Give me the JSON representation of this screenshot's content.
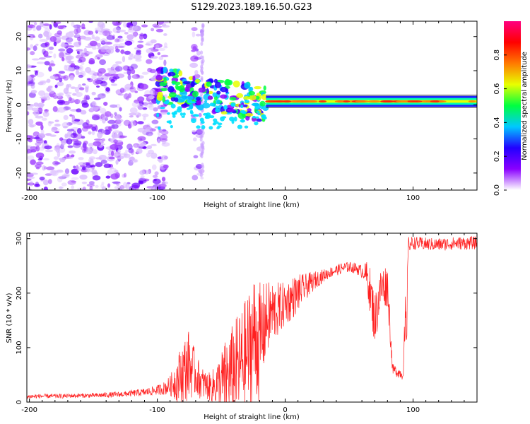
{
  "title": "S129.2023.189.16.50.G23",
  "chart_data": [
    {
      "type": "heatmap",
      "name": "spectrogram",
      "xlabel": "Height of straight line (km)",
      "ylabel": "Frequency (Hz)",
      "xlim": [
        -202,
        150
      ],
      "ylim": [
        -25,
        24.5
      ],
      "xticks": [
        -200,
        -100,
        0,
        100
      ],
      "xtick_labels": [
        "-200",
        "-100",
        "0",
        "100"
      ],
      "yticks": [
        -20,
        -10,
        0,
        10,
        20
      ],
      "ytick_labels": [
        "-20",
        "-10",
        "0",
        "10",
        "20"
      ],
      "colorbar": {
        "label": "Normalized spectral amplitude",
        "range": [
          0,
          1
        ],
        "ticks": [
          0.0,
          0.2,
          0.4,
          0.6,
          0.8
        ],
        "tick_labels": [
          "0.0",
          "0.2",
          "0.4",
          "0.6",
          "0.8"
        ],
        "colormap": [
          "#ffffff",
          "#8a00ff",
          "#2200ff",
          "#00c8ff",
          "#00ff40",
          "#e8ff00",
          "#ff7a00",
          "#ff0000",
          "#ff0080"
        ]
      },
      "features": {
        "noise_region_km": [
          -202,
          -65
        ],
        "dispersed_region_km": [
          -100,
          -15
        ],
        "carrier_line_km": [
          -15,
          150
        ],
        "carrier_frequency_hz": 1
      }
    },
    {
      "type": "line",
      "name": "snr",
      "xlabel": "Height of straight line (km)",
      "ylabel": "SNR (10 * v/v)",
      "xlim": [
        -202,
        150
      ],
      "ylim": [
        0,
        310
      ],
      "xticks": [
        -200,
        -100,
        0,
        100
      ],
      "xtick_labels": [
        "-200",
        "-100",
        "0",
        "100"
      ],
      "yticks": [
        0,
        100,
        200,
        300
      ],
      "ytick_labels": [
        "0",
        "100",
        "200",
        "300"
      ],
      "color": "#ff2020",
      "series": [
        {
          "name": "SNR",
          "x": [
            -202,
            -190,
            -175,
            -160,
            -150,
            -140,
            -130,
            -120,
            -110,
            -100,
            -95,
            -90,
            -85,
            -80,
            -75,
            -70,
            -65,
            -60,
            -55,
            -50,
            -45,
            -40,
            -35,
            -30,
            -25,
            -20,
            -15,
            -10,
            -5,
            0,
            5,
            10,
            15,
            20,
            25,
            30,
            35,
            40,
            45,
            50,
            55,
            60,
            62,
            65,
            70,
            75,
            80,
            82,
            84,
            86,
            88,
            90,
            92,
            94,
            95,
            96,
            97,
            100,
            110,
            120,
            130,
            140,
            150
          ],
          "y": [
            10,
            11,
            11,
            12,
            12,
            13,
            14,
            16,
            18,
            22,
            25,
            30,
            40,
            55,
            70,
            50,
            35,
            28,
            30,
            35,
            45,
            60,
            70,
            85,
            120,
            110,
            150,
            165,
            170,
            180,
            190,
            200,
            210,
            218,
            226,
            232,
            238,
            242,
            246,
            248,
            246,
            240,
            238,
            225,
            150,
            210,
            215,
            140,
            60,
            58,
            55,
            53,
            50,
            140,
            95,
            285,
            290,
            292,
            290,
            289,
            291,
            292,
            292
          ],
          "spike_amplitude": [
            4,
            4,
            4,
            4,
            4,
            5,
            5,
            6,
            7,
            9,
            12,
            18,
            40,
            60,
            65,
            40,
            30,
            25,
            35,
            60,
            80,
            90,
            100,
            110,
            120,
            110,
            70,
            60,
            50,
            40,
            40,
            35,
            25,
            20,
            15,
            12,
            10,
            10,
            10,
            10,
            10,
            12,
            15,
            40,
            50,
            40,
            40,
            30,
            10,
            10,
            10,
            10,
            10,
            60,
            50,
            15,
            15,
            12,
            12,
            12,
            12,
            12,
            12
          ]
        }
      ]
    }
  ]
}
